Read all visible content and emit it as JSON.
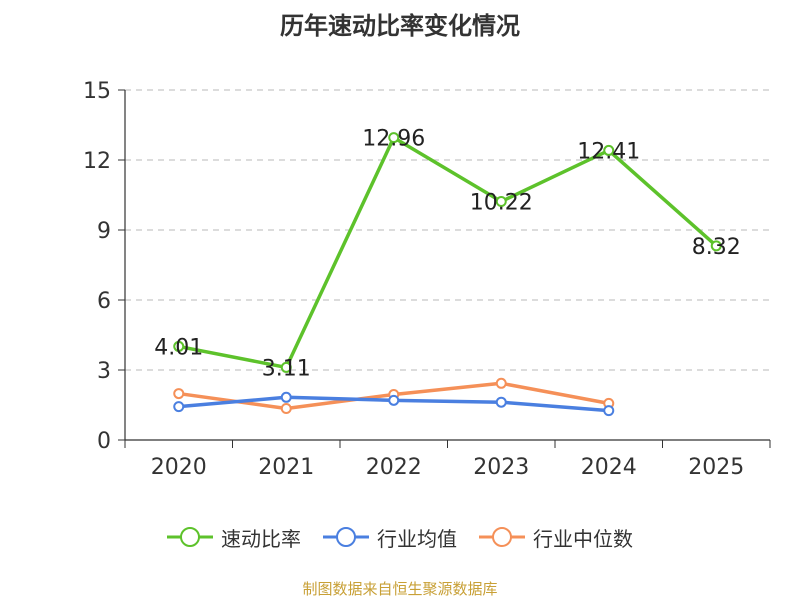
{
  "chart_data": {
    "type": "line",
    "title": "历年速动比率变化情况",
    "categories": [
      "2020",
      "2021",
      "2022",
      "2023",
      "2024",
      "2025"
    ],
    "yticks": [
      0,
      3,
      6,
      9,
      12,
      15
    ],
    "ylim": [
      0,
      15
    ],
    "grid": true,
    "legend_position": "bottom",
    "series": [
      {
        "name": "速动比率",
        "color": "#5dc22b",
        "values": [
          4.01,
          3.11,
          12.96,
          10.22,
          12.41,
          8.32
        ],
        "labels": [
          "4.01",
          "3.11",
          "12.96",
          "10.22",
          "12.41",
          "8.32"
        ]
      },
      {
        "name": "行业均值",
        "color": "#4a7fe0",
        "values": [
          1.43,
          1.83,
          1.7,
          1.62,
          1.26,
          null
        ]
      },
      {
        "name": "行业中位数",
        "color": "#f59058",
        "values": [
          1.99,
          1.35,
          1.95,
          2.43,
          1.57,
          null
        ]
      }
    ]
  },
  "footer": {
    "source": "制图数据来自恒生聚源数据库",
    "color": "#c8a036"
  }
}
